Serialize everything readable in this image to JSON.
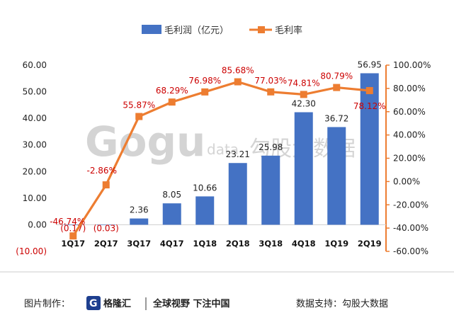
{
  "chart_data": {
    "type": "bar+line",
    "categories": [
      "1Q17",
      "2Q17",
      "3Q17",
      "4Q17",
      "1Q18",
      "2Q18",
      "3Q18",
      "4Q18",
      "1Q19",
      "2Q19"
    ],
    "series": [
      {
        "name": "毛利润（亿元）",
        "type": "bar",
        "axis": "left",
        "color": "#4472c4",
        "values": [
          -0.17,
          -0.03,
          2.36,
          8.05,
          10.66,
          23.21,
          25.98,
          42.3,
          36.72,
          56.95
        ],
        "labels": [
          "(0.17)",
          "(0.03)",
          "2.36",
          "8.05",
          "10.66",
          "23.21",
          "25.98",
          "42.30",
          "36.72",
          "56.95"
        ]
      },
      {
        "name": "毛利率",
        "type": "line",
        "axis": "right",
        "color": "#ed7d31",
        "values": [
          -46.74,
          -2.86,
          55.87,
          68.29,
          76.98,
          85.68,
          77.03,
          74.81,
          80.79,
          78.12
        ],
        "labels": [
          "-46.74%",
          "-2.86%",
          "55.87%",
          "68.29%",
          "76.98%",
          "85.68%",
          "77.03%",
          "74.81%",
          "80.79%",
          "78.12%"
        ]
      }
    ],
    "left_axis": {
      "ylim": [
        -10,
        60
      ],
      "ticks": [
        "(10.00)",
        "0.00",
        "10.00",
        "20.00",
        "30.00",
        "40.00",
        "50.00",
        "60.00"
      ]
    },
    "right_axis": {
      "ylim": [
        -60,
        100
      ],
      "ticks": [
        "-60.00%",
        "-40.00%",
        "-20.00%",
        "0.00%",
        "20.00%",
        "40.00%",
        "60.00%",
        "80.00%",
        "100.00%"
      ]
    },
    "legend_position": "top-center",
    "grid": false
  },
  "watermark": {
    "logo": "Gogu",
    "sub": "data",
    "cn": "勾股大数据"
  },
  "footer": {
    "left_label": "图片制作：",
    "brand": "格隆汇",
    "slogan": "全球视野 下注中国",
    "right": "数据支持：勾股大数据"
  },
  "colors": {
    "bar": "#4472c4",
    "line": "#ed7d31",
    "label_red": "#cc0000"
  }
}
